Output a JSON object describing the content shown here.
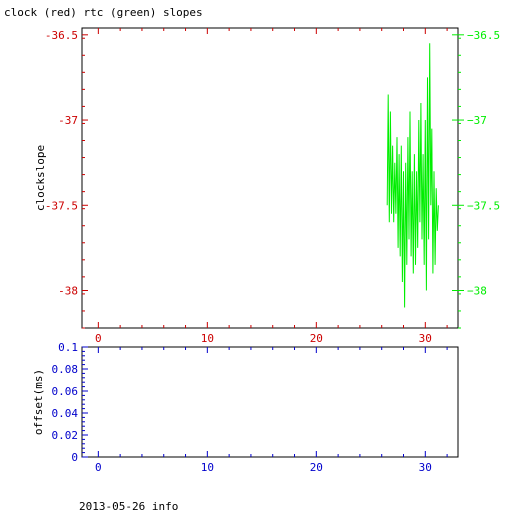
{
  "title": "clock (red) rtc (green) slopes",
  "footer": "2013-05-26 info",
  "colors": {
    "red": "#cc0000",
    "green": "#00ee00",
    "blue": "#0000cc",
    "axis": "#000000"
  },
  "chart_data": [
    {
      "type": "line",
      "ylabel": "clockslope",
      "xlim": [
        -1.5,
        33
      ],
      "ylim": [
        -38.22,
        -36.46
      ],
      "x_ticks": [
        0,
        10,
        20,
        30
      ],
      "y_ticks_left": [
        "-36.5",
        "-37",
        "-37.5",
        "-38"
      ],
      "y_ticks_right": [
        "-36.5",
        "-37",
        "-37.5",
        "-38"
      ],
      "y_tick_values": [
        -36.5,
        -37,
        -37.5,
        -38
      ],
      "series": [
        {
          "color": "green",
          "x": [
            26.5,
            26.6,
            26.7,
            26.8,
            26.9,
            27.0,
            27.1,
            27.2,
            27.3,
            27.4,
            27.5,
            27.6,
            27.7,
            27.8,
            27.9,
            28.0,
            28.1,
            28.2,
            28.3,
            28.4,
            28.5,
            28.6,
            28.7,
            28.8,
            28.9,
            29.0,
            29.1,
            29.2,
            29.3,
            29.4,
            29.5,
            29.6,
            29.7,
            29.8,
            29.9,
            30.0,
            30.1,
            30.2,
            30.3,
            30.4,
            30.5,
            30.6,
            30.7,
            30.8,
            30.9,
            31.0,
            31.1,
            31.2
          ],
          "values": [
            -37.5,
            -36.85,
            -37.6,
            -36.95,
            -37.55,
            -37.15,
            -37.6,
            -37.25,
            -37.55,
            -37.1,
            -37.75,
            -37.2,
            -37.8,
            -37.15,
            -37.95,
            -37.3,
            -38.1,
            -37.25,
            -37.85,
            -37.1,
            -37.7,
            -36.95,
            -37.8,
            -37.3,
            -37.9,
            -37.2,
            -37.85,
            -37.3,
            -37.75,
            -37.0,
            -37.6,
            -36.9,
            -37.7,
            -37.2,
            -37.85,
            -37.0,
            -38.0,
            -36.75,
            -37.7,
            -36.55,
            -37.5,
            -37.05,
            -37.9,
            -37.3,
            -37.85,
            -37.4,
            -37.65,
            -37.5
          ]
        }
      ]
    },
    {
      "type": "line",
      "ylabel": "offset(ms)",
      "xlim": [
        -1.5,
        33
      ],
      "ylim": [
        0,
        0.1
      ],
      "x_ticks": [
        0,
        10,
        20,
        30
      ],
      "y_ticks_left": [
        "0",
        "0.02",
        "0.04",
        "0.06",
        "0.08",
        "0.1"
      ],
      "y_tick_values": [
        0,
        0.02,
        0.04,
        0.06,
        0.08,
        0.1
      ],
      "series": []
    }
  ]
}
